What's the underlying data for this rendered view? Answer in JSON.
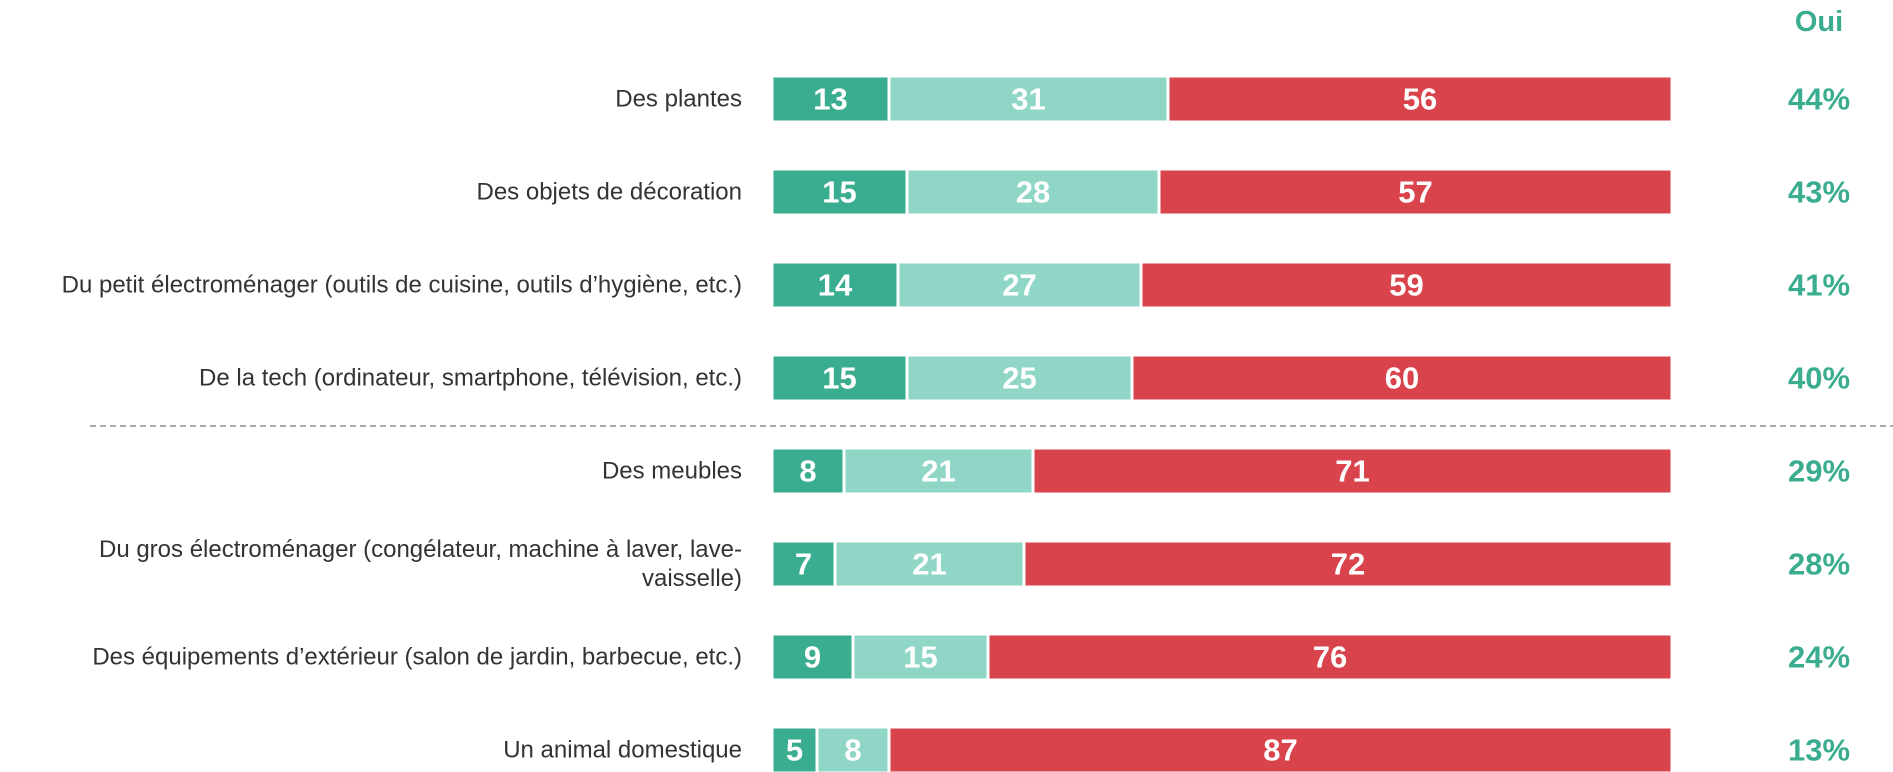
{
  "chart_data": {
    "type": "stacked_bar",
    "categories": [
      "Des plantes",
      "Des objets de décoration",
      "Du petit électroménager (outils de cuisine, outils d’hygiène, etc.)",
      "De la tech (ordinateur, smartphone, télévision, etc.)",
      "Des meubles",
      "Du gros électroménager (congélateur, machine à laver, lave-vaisselle)",
      "Des équipements d’extérieur (salon de jardin, barbecue, etc.)",
      "Un animal domestique"
    ],
    "series": [
      {
        "color": "#3aac90",
        "values": [
          13,
          15,
          14,
          15,
          8,
          7,
          9,
          5
        ]
      },
      {
        "color": "#8fd6c7",
        "values": [
          31,
          28,
          27,
          25,
          21,
          21,
          15,
          8
        ]
      },
      {
        "color": "#d9434c",
        "values": [
          56,
          57,
          59,
          60,
          71,
          72,
          76,
          87
        ]
      }
    ],
    "xlim": [
      0,
      100
    ],
    "oui": {
      "title": "Oui",
      "color": "#3aac90",
      "values": [
        44,
        43,
        41,
        40,
        29,
        28,
        24,
        13
      ],
      "value_labels": [
        "44%",
        "43%",
        "41%",
        "40%",
        "29%",
        "28%",
        "24%",
        "13%"
      ]
    }
  }
}
